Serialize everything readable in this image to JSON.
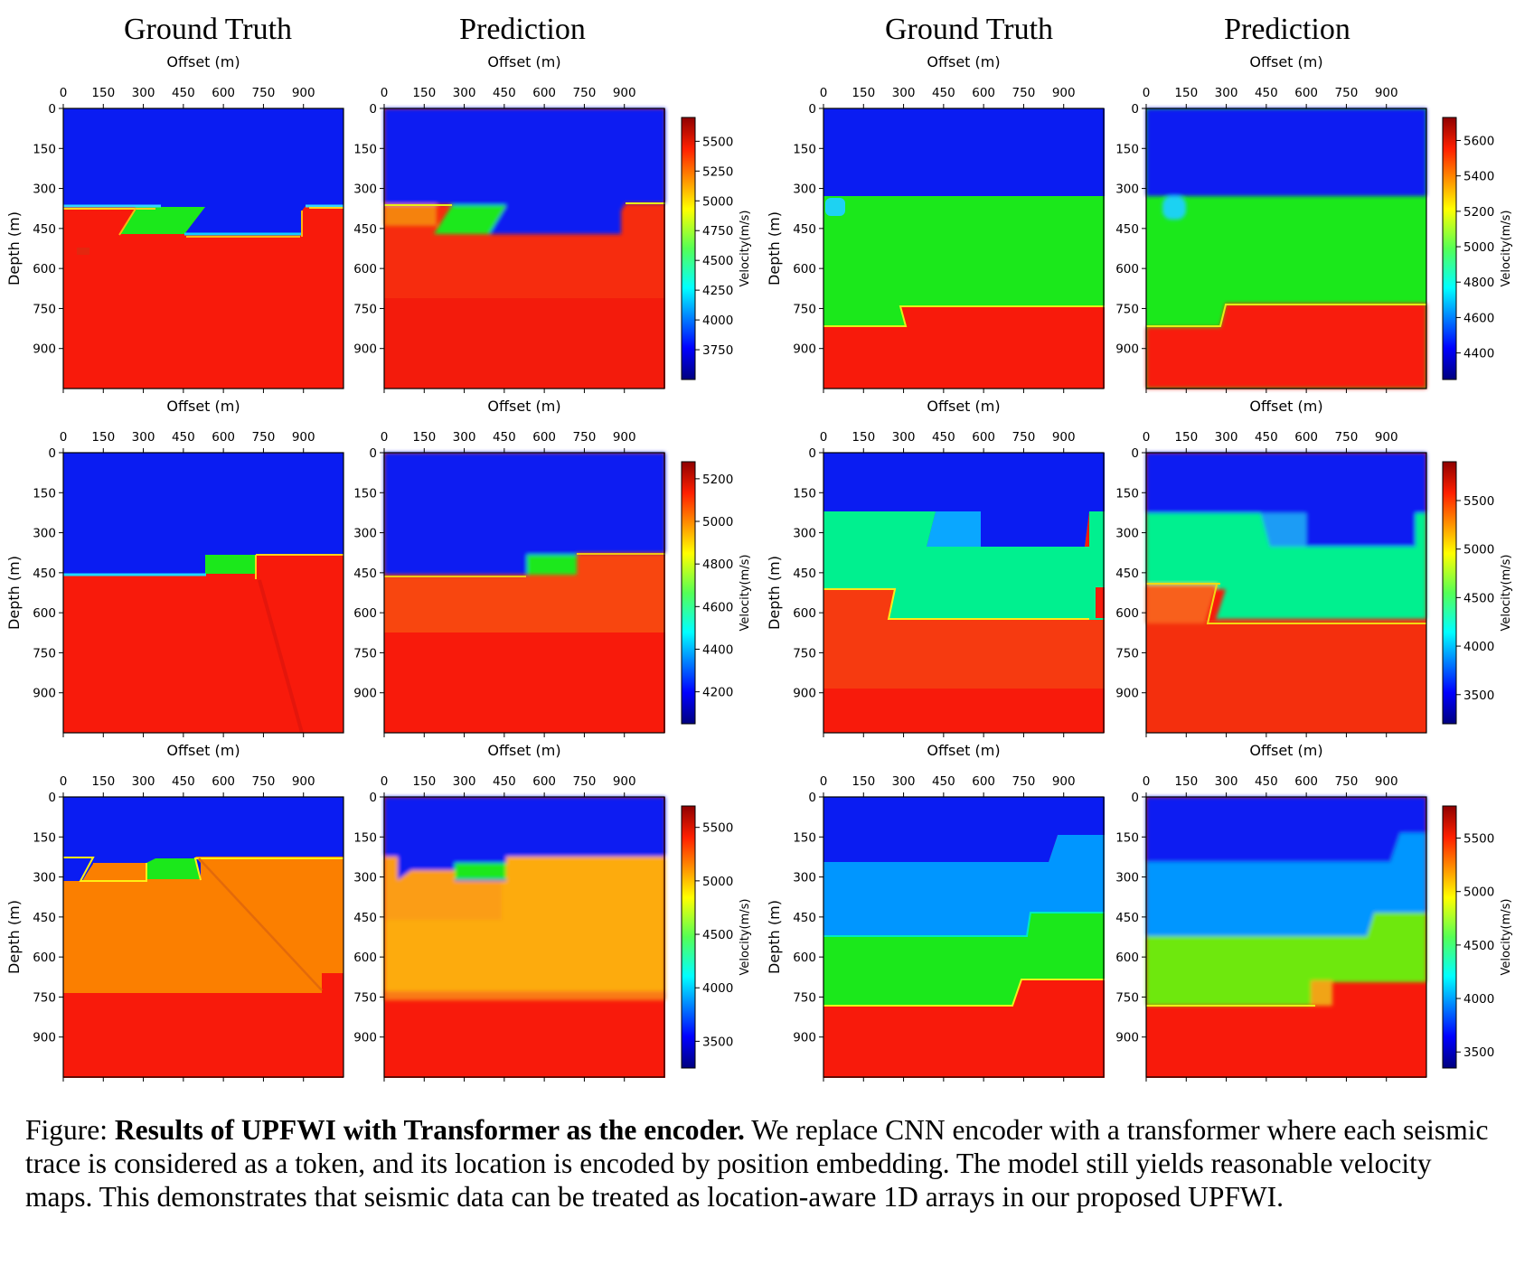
{
  "column_titles": [
    "Ground Truth",
    "Prediction",
    "Ground Truth",
    "Prediction"
  ],
  "caption": {
    "prefix": "Figure: ",
    "bold": "Results of UPFWI with Transformer as the encoder.",
    "text": " We replace CNN encoder with a transformer where each seismic trace is considered as a token, and its location is encoded by position embedding. The model still yields reasonable velocity maps. This demonstrates that seismic data can be treated as location-aware 1D arrays in our proposed UPFWI."
  },
  "colors": {
    "blue_zone": "#0a1cf2",
    "red_zone": "#f81a0b",
    "green_zone": "#1be81b"
  },
  "chart_data": [
    {
      "type": "heatmap",
      "row": 0,
      "side": "left",
      "xlabel": "Offset (m)",
      "ylabel": "Depth (m)",
      "xticks": [
        0,
        150,
        300,
        450,
        600,
        750,
        900
      ],
      "yticks": [
        0,
        150,
        300,
        450,
        600,
        750,
        900
      ],
      "extent": [
        0,
        1050
      ],
      "colorbar": {
        "label": "Velocity(m/s)",
        "min": 3500,
        "max": 5700,
        "ticks": [
          3750,
          4000,
          4250,
          4500,
          4750,
          5000,
          5250,
          5500
        ]
      },
      "layers": {
        "top_velocity": 3500,
        "middle_velocity": 4600,
        "bottom_velocity": 5650
      }
    },
    {
      "type": "heatmap",
      "row": 0,
      "side": "right",
      "xlabel": "Offset (m)",
      "ylabel": "Depth (m)",
      "xticks": [
        0,
        150,
        300,
        450,
        600,
        750,
        900
      ],
      "yticks": [
        0,
        150,
        300,
        450,
        600,
        750,
        900
      ],
      "extent": [
        0,
        1050
      ],
      "colorbar": {
        "label": "Velocity(m/s)",
        "min": 4250,
        "max": 5730,
        "ticks": [
          4400,
          4600,
          4800,
          5000,
          5200,
          5400,
          5600
        ]
      },
      "layers": {
        "top_velocity": 4250,
        "middle_velocity": 4900,
        "bottom_velocity": 5700
      }
    },
    {
      "type": "heatmap",
      "row": 1,
      "side": "left",
      "xlabel": "Offset (m)",
      "ylabel": "Depth (m)",
      "xticks": [
        0,
        150,
        300,
        450,
        600,
        750,
        900
      ],
      "yticks": [
        0,
        150,
        300,
        450,
        600,
        750,
        900
      ],
      "extent": [
        0,
        1050
      ],
      "colorbar": {
        "label": "Velocity(m/s)",
        "min": 4050,
        "max": 5280,
        "ticks": [
          4200,
          4400,
          4600,
          4800,
          5000,
          5200
        ]
      },
      "layers": {
        "top_velocity": 4050,
        "middle_velocity": 4700,
        "bottom_velocity": 5250
      }
    },
    {
      "type": "heatmap",
      "row": 1,
      "side": "right",
      "xlabel": "Offset (m)",
      "ylabel": "Depth (m)",
      "xticks": [
        0,
        150,
        300,
        450,
        600,
        750,
        900
      ],
      "yticks": [
        0,
        150,
        300,
        450,
        600,
        750,
        900
      ],
      "extent": [
        0,
        1050
      ],
      "colorbar": {
        "label": "Velocity(m/s)",
        "min": 3200,
        "max": 5900,
        "ticks": [
          3500,
          4000,
          4500,
          5000,
          5500
        ]
      },
      "layers": {
        "top_velocity": 3250,
        "middle_velocity": 4250,
        "bottom_velocity": 5850
      }
    },
    {
      "type": "heatmap",
      "row": 2,
      "side": "left",
      "xlabel": "Offset (m)",
      "ylabel": "Depth (m)",
      "xticks": [
        0,
        150,
        300,
        450,
        600,
        750,
        900
      ],
      "yticks": [
        0,
        150,
        300,
        450,
        600,
        750,
        900
      ],
      "extent": [
        0,
        1050
      ],
      "colorbar": {
        "label": "Velocity(m/s)",
        "min": 3250,
        "max": 5700,
        "ticks": [
          3500,
          4000,
          4500,
          5000,
          5500
        ]
      },
      "layers": {
        "top_velocity": 3300,
        "middle_velocity": 5350,
        "bottom_velocity": 5650
      }
    },
    {
      "type": "heatmap",
      "row": 2,
      "side": "right",
      "xlabel": "Offset (m)",
      "ylabel": "Depth (m)",
      "xticks": [
        0,
        150,
        300,
        450,
        600,
        750,
        900
      ],
      "yticks": [
        0,
        150,
        300,
        450,
        600,
        750,
        900
      ],
      "extent": [
        0,
        1050
      ],
      "colorbar": {
        "label": "Velocity(m/s)",
        "min": 3350,
        "max": 5800,
        "ticks": [
          3500,
          4000,
          4500,
          5000,
          5500
        ]
      },
      "layers": {
        "top_velocity": 3400,
        "middle_velocity": 3900,
        "lower_velocity": 4700,
        "bottom_velocity": 5750
      }
    }
  ]
}
